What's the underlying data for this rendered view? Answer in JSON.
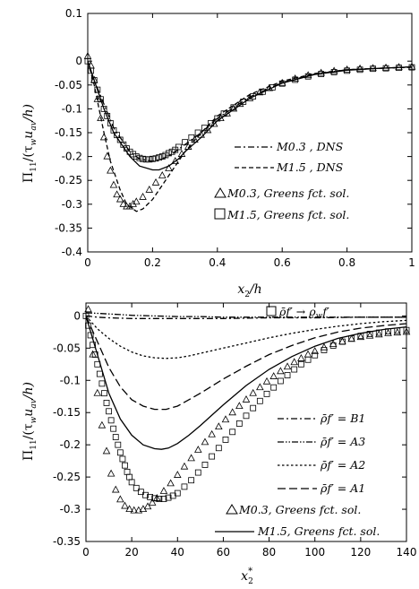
{
  "chart_data": [
    {
      "type": "line",
      "xlabel": "x₂/h",
      "ylabel": "Π₁₁/(τ_w u_av/h)",
      "xlim": [
        0,
        1
      ],
      "ylim": [
        -0.4,
        0.1
      ],
      "xticks": [
        "0",
        "0.2",
        "0.4",
        "0.6",
        "0.8",
        "1"
      ],
      "yticks": [
        "0.1",
        "0",
        "-0.05",
        "-0.1",
        "-0.15",
        "-0.2",
        "-0.25",
        "-0.3",
        "-0.35",
        "-0.4"
      ],
      "legend_position": "right",
      "series": [
        {
          "name": "M0.3 , DNS",
          "style": "dash-dot",
          "x": [
            0,
            0.02,
            0.05,
            0.08,
            0.1,
            0.13,
            0.16,
            0.2,
            0.23,
            0.26,
            0.3,
            0.35,
            0.4,
            0.5,
            0.6,
            0.7,
            0.8,
            0.9,
            1.0
          ],
          "y": [
            0,
            -0.04,
            -0.09,
            -0.14,
            -0.16,
            -0.19,
            -0.205,
            -0.21,
            -0.205,
            -0.195,
            -0.175,
            -0.15,
            -0.12,
            -0.075,
            -0.045,
            -0.027,
            -0.018,
            -0.015,
            -0.012
          ]
        },
        {
          "name": "M1.5 , DNS",
          "style": "dashed",
          "x": [
            0,
            0.02,
            0.05,
            0.07,
            0.1,
            0.12,
            0.15,
            0.17,
            0.2,
            0.23,
            0.26,
            0.3,
            0.35,
            0.4,
            0.5,
            0.6,
            0.7,
            0.8,
            0.9,
            1.0
          ],
          "y": [
            0,
            -0.05,
            -0.15,
            -0.21,
            -0.27,
            -0.3,
            -0.315,
            -0.31,
            -0.29,
            -0.26,
            -0.23,
            -0.19,
            -0.15,
            -0.115,
            -0.07,
            -0.042,
            -0.026,
            -0.018,
            -0.015,
            -0.013
          ]
        },
        {
          "name": "solid",
          "style": "solid",
          "legend": false,
          "x": [
            0,
            0.02,
            0.05,
            0.08,
            0.1,
            0.13,
            0.16,
            0.2,
            0.22,
            0.25,
            0.28,
            0.3,
            0.35,
            0.4,
            0.5,
            0.6,
            0.7,
            0.8,
            0.9,
            1.0
          ],
          "y": [
            0,
            -0.04,
            -0.1,
            -0.15,
            -0.17,
            -0.2,
            -0.22,
            -0.228,
            -0.228,
            -0.22,
            -0.205,
            -0.19,
            -0.16,
            -0.125,
            -0.078,
            -0.046,
            -0.028,
            -0.019,
            -0.015,
            -0.012
          ]
        },
        {
          "name": "M0.3, Greens fct. sol.",
          "marker": "triangle",
          "x": [
            0,
            0.01,
            0.02,
            0.03,
            0.04,
            0.05,
            0.06,
            0.07,
            0.08,
            0.09,
            0.1,
            0.11,
            0.12,
            0.13,
            0.14,
            0.15,
            0.17,
            0.19,
            0.21,
            0.23,
            0.25,
            0.27,
            0.29,
            0.31,
            0.33,
            0.35,
            0.37,
            0.39,
            0.41,
            0.43,
            0.45,
            0.47,
            0.5,
            0.53,
            0.56,
            0.6,
            0.64,
            0.68,
            0.72,
            0.76,
            0.8,
            0.84,
            0.88,
            0.92,
            0.96,
            1.0
          ],
          "y": [
            0.01,
            -0.01,
            -0.04,
            -0.08,
            -0.12,
            -0.16,
            -0.2,
            -0.23,
            -0.26,
            -0.28,
            -0.29,
            -0.3,
            -0.305,
            -0.305,
            -0.3,
            -0.295,
            -0.285,
            -0.27,
            -0.255,
            -0.24,
            -0.225,
            -0.21,
            -0.195,
            -0.18,
            -0.165,
            -0.155,
            -0.145,
            -0.132,
            -0.12,
            -0.11,
            -0.1,
            -0.09,
            -0.078,
            -0.066,
            -0.057,
            -0.046,
            -0.037,
            -0.03,
            -0.025,
            -0.021,
            -0.018,
            -0.016,
            -0.015,
            -0.014,
            -0.013,
            -0.012
          ]
        },
        {
          "name": "M1.5, Greens fct. sol.",
          "marker": "square",
          "x": [
            0,
            0.01,
            0.02,
            0.03,
            0.04,
            0.05,
            0.06,
            0.07,
            0.08,
            0.09,
            0.1,
            0.11,
            0.12,
            0.13,
            0.14,
            0.15,
            0.16,
            0.17,
            0.18,
            0.19,
            0.2,
            0.21,
            0.22,
            0.23,
            0.24,
            0.25,
            0.26,
            0.27,
            0.28,
            0.3,
            0.32,
            0.34,
            0.36,
            0.38,
            0.4,
            0.42,
            0.45,
            0.48,
            0.51,
            0.54,
            0.57,
            0.6,
            0.64,
            0.68,
            0.72,
            0.76,
            0.8,
            0.84,
            0.88,
            0.92,
            0.96,
            1.0
          ],
          "y": [
            0,
            -0.02,
            -0.04,
            -0.06,
            -0.08,
            -0.1,
            -0.115,
            -0.13,
            -0.145,
            -0.155,
            -0.165,
            -0.175,
            -0.183,
            -0.19,
            -0.195,
            -0.2,
            -0.203,
            -0.205,
            -0.206,
            -0.206,
            -0.205,
            -0.204,
            -0.202,
            -0.2,
            -0.197,
            -0.193,
            -0.19,
            -0.186,
            -0.18,
            -0.17,
            -0.16,
            -0.15,
            -0.14,
            -0.13,
            -0.12,
            -0.11,
            -0.097,
            -0.085,
            -0.074,
            -0.064,
            -0.055,
            -0.047,
            -0.039,
            -0.032,
            -0.027,
            -0.023,
            -0.02,
            -0.018,
            -0.016,
            -0.015,
            -0.014,
            -0.013
          ]
        }
      ]
    },
    {
      "type": "line",
      "xlabel": "x₂*",
      "ylabel": "Π₁₁/(τ_w u_av/h)",
      "xlim": [
        0,
        140
      ],
      "ylim": [
        -0.35,
        0.02
      ],
      "xticks": [
        "0",
        "20",
        "40",
        "60",
        "80",
        "100",
        "120",
        "140"
      ],
      "yticks": [
        "0",
        "-0.05",
        "-0.1",
        "-0.15",
        "-0.2",
        "-0.25",
        "-0.3",
        "-0.35"
      ],
      "legend_position": "right",
      "series": [
        {
          "name": "ρ̄f′ → ρ_w f′",
          "marker": "square",
          "x": [
            0,
            1,
            2,
            3,
            4,
            5,
            6,
            7,
            8,
            9,
            10,
            11,
            12,
            13,
            14,
            15,
            16,
            17,
            18,
            19,
            20,
            22,
            24,
            26,
            28,
            30,
            32,
            34,
            36,
            38,
            40,
            43,
            46,
            49,
            52,
            55,
            58,
            61,
            64,
            67,
            70,
            73,
            76,
            79,
            82,
            85,
            88,
            91,
            94,
            97,
            100,
            104,
            108,
            112,
            116,
            120,
            124,
            128,
            132,
            136,
            140
          ],
          "y": [
            0,
            -0.015,
            -0.03,
            -0.045,
            -0.06,
            -0.075,
            -0.09,
            -0.105,
            -0.12,
            -0.135,
            -0.148,
            -0.162,
            -0.175,
            -0.188,
            -0.2,
            -0.212,
            -0.222,
            -0.232,
            -0.242,
            -0.25,
            -0.258,
            -0.267,
            -0.273,
            -0.278,
            -0.281,
            -0.283,
            -0.284,
            -0.284,
            -0.282,
            -0.279,
            -0.275,
            -0.265,
            -0.255,
            -0.243,
            -0.231,
            -0.218,
            -0.205,
            -0.192,
            -0.18,
            -0.167,
            -0.155,
            -0.143,
            -0.132,
            -0.121,
            -0.111,
            -0.101,
            -0.092,
            -0.083,
            -0.075,
            -0.068,
            -0.061,
            -0.053,
            -0.046,
            -0.04,
            -0.035,
            -0.031,
            -0.028,
            -0.026,
            -0.024,
            -0.023,
            -0.022
          ]
        },
        {
          "name": "ρ̄f′ = B1",
          "style": "dash-dot",
          "x": [
            0,
            5,
            10,
            20,
            30,
            40,
            60,
            80,
            100,
            120,
            140
          ],
          "y": [
            0,
            -0.002,
            -0.003,
            -0.004,
            -0.004,
            -0.004,
            -0.004,
            -0.003,
            -0.003,
            -0.002,
            -0.002
          ]
        },
        {
          "name": "ρ̄f′ = A3",
          "style": "dash-dot-dot",
          "x": [
            0,
            5,
            10,
            15,
            20,
            30,
            40,
            50,
            60,
            80,
            100,
            120,
            140
          ],
          "y": [
            0.005,
            0.004,
            0.003,
            0.002,
            0.001,
            0.0,
            -0.001,
            -0.001,
            -0.002,
            -0.002,
            -0.002,
            -0.002,
            -0.002
          ]
        },
        {
          "name": "ρ̄f′ = A2",
          "style": "dotted",
          "x": [
            0,
            5,
            10,
            15,
            20,
            25,
            30,
            35,
            40,
            45,
            50,
            60,
            70,
            80,
            90,
            100,
            110,
            120,
            130,
            140
          ],
          "y": [
            0,
            -0.02,
            -0.035,
            -0.047,
            -0.056,
            -0.062,
            -0.065,
            -0.066,
            -0.065,
            -0.062,
            -0.058,
            -0.05,
            -0.042,
            -0.034,
            -0.027,
            -0.021,
            -0.016,
            -0.012,
            -0.009,
            -0.007
          ]
        },
        {
          "name": "ρ̄f′ = A1",
          "style": "dashed",
          "x": [
            0,
            5,
            10,
            15,
            20,
            25,
            30,
            35,
            40,
            45,
            50,
            60,
            70,
            80,
            90,
            100,
            110,
            120,
            130,
            140
          ],
          "y": [
            0,
            -0.04,
            -0.08,
            -0.11,
            -0.13,
            -0.14,
            -0.145,
            -0.145,
            -0.14,
            -0.13,
            -0.12,
            -0.098,
            -0.078,
            -0.06,
            -0.046,
            -0.034,
            -0.025,
            -0.019,
            -0.015,
            -0.012
          ]
        },
        {
          "name": "M0.3, Greens fct. sol.",
          "marker": "triangle",
          "x": [
            1,
            3,
            5,
            7,
            9,
            11,
            13,
            15,
            17,
            19,
            21,
            23,
            25,
            27,
            29,
            31,
            34,
            37,
            40,
            43,
            46,
            49,
            52,
            55,
            58,
            61,
            64,
            67,
            70,
            73,
            76,
            79,
            82,
            85,
            88,
            91,
            94,
            97,
            100,
            104,
            108,
            112,
            116,
            120,
            124,
            128,
            132,
            136,
            140
          ],
          "y": [
            0.01,
            -0.06,
            -0.12,
            -0.17,
            -0.21,
            -0.245,
            -0.27,
            -0.285,
            -0.295,
            -0.3,
            -0.302,
            -0.302,
            -0.3,
            -0.296,
            -0.29,
            -0.283,
            -0.272,
            -0.26,
            -0.247,
            -0.234,
            -0.221,
            -0.208,
            -0.196,
            -0.184,
            -0.172,
            -0.161,
            -0.15,
            -0.14,
            -0.13,
            -0.12,
            -0.111,
            -0.102,
            -0.094,
            -0.086,
            -0.079,
            -0.072,
            -0.066,
            -0.06,
            -0.055,
            -0.049,
            -0.044,
            -0.04,
            -0.036,
            -0.033,
            -0.031,
            -0.029,
            -0.027,
            -0.026,
            -0.025
          ]
        },
        {
          "name": "M1.5, Greens fct. sol.",
          "style": "solid",
          "x": [
            0,
            5,
            10,
            15,
            20,
            25,
            30,
            33,
            36,
            40,
            45,
            50,
            55,
            60,
            70,
            80,
            90,
            100,
            110,
            120,
            130,
            140
          ],
          "y": [
            0,
            -0.06,
            -0.12,
            -0.16,
            -0.185,
            -0.2,
            -0.206,
            -0.207,
            -0.205,
            -0.198,
            -0.185,
            -0.17,
            -0.154,
            -0.138,
            -0.108,
            -0.083,
            -0.063,
            -0.047,
            -0.035,
            -0.027,
            -0.021,
            -0.017
          ]
        }
      ]
    }
  ],
  "legend": {
    "top": {
      "l1_name": "M0.3",
      "l1_suffix": " , DNS",
      "l2_name": "M1.5",
      "l2_suffix": " , DNS",
      "l3_name": "M0.3, Greens fct. sol.",
      "l4_name": "M1.5, Greens fct. sol."
    },
    "bottom": {
      "l0": "ρ̄f′ → ρ",
      "l0_sub": "w",
      "l0_end": "f′",
      "l1_lhs": "ρ̄f′ = ",
      "l1_rhs": "B1",
      "l2_lhs": "ρ̄f′ = ",
      "l2_rhs": "A3",
      "l3_lhs": "ρ̄f′ = ",
      "l3_rhs": "A2",
      "l4_lhs": "ρ̄f′ = ",
      "l4_rhs": "A1",
      "l5_name": "M0.3, Greens fct. sol.",
      "l6_name": "M1.5, Greens fct. sol."
    }
  },
  "axis_text": {
    "top_ylabel_main": "Π",
    "top_ylabel_sub": "11",
    "top_ylabel_rest": "/(τ",
    "top_ylabel_sub2": "w",
    "top_ylabel_rest2": "u",
    "top_ylabel_sub3": "av",
    "top_ylabel_rest3": "/h)",
    "top_xlabel_main": "x",
    "top_xlabel_sub": "2",
    "top_xlabel_rest": "/h",
    "bot_xlabel_main": "x",
    "bot_xlabel_sub": "2",
    "bot_xlabel_sup": "*"
  }
}
